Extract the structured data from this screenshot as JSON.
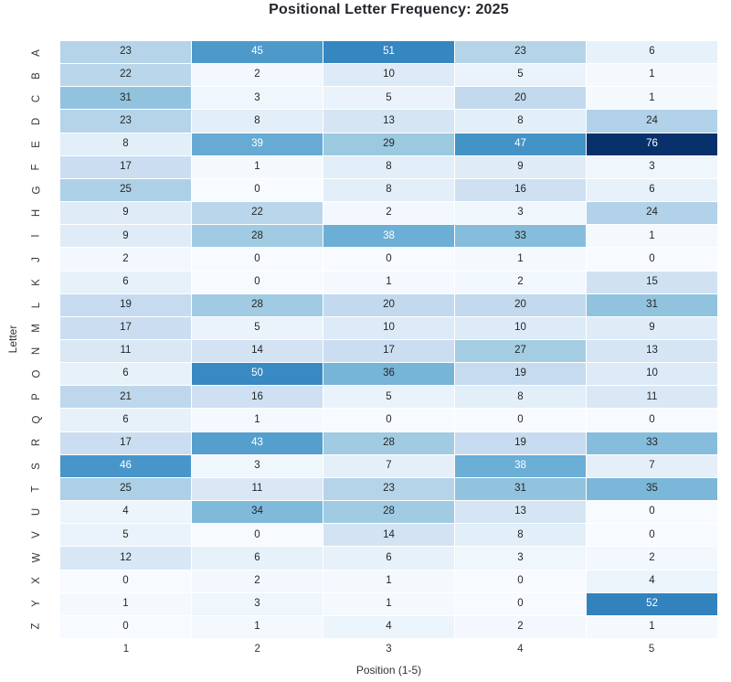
{
  "title": "Positional Letter Frequency: 2025",
  "chart_data": {
    "type": "heatmap",
    "title": "Positional Letter Frequency: 2025",
    "xlabel": "Position (1-5)",
    "ylabel": "Letter",
    "x_tick_labels": [
      "1",
      "2",
      "3",
      "4",
      "5"
    ],
    "y_tick_labels": [
      "A",
      "B",
      "C",
      "D",
      "E",
      "F",
      "G",
      "H",
      "I",
      "J",
      "K",
      "L",
      "M",
      "N",
      "O",
      "P",
      "Q",
      "R",
      "S",
      "T",
      "U",
      "V",
      "W",
      "X",
      "Y",
      "Z"
    ],
    "values": [
      [
        23,
        45,
        51,
        23,
        6
      ],
      [
        22,
        2,
        10,
        5,
        1
      ],
      [
        31,
        3,
        5,
        20,
        1
      ],
      [
        23,
        8,
        13,
        8,
        24
      ],
      [
        8,
        39,
        29,
        47,
        76
      ],
      [
        17,
        1,
        8,
        9,
        3
      ],
      [
        25,
        0,
        8,
        16,
        6
      ],
      [
        9,
        22,
        2,
        3,
        24
      ],
      [
        9,
        28,
        38,
        33,
        1
      ],
      [
        2,
        0,
        0,
        1,
        0
      ],
      [
        6,
        0,
        1,
        2,
        15
      ],
      [
        19,
        28,
        20,
        20,
        31
      ],
      [
        17,
        5,
        10,
        10,
        9
      ],
      [
        11,
        14,
        17,
        27,
        13
      ],
      [
        6,
        50,
        36,
        19,
        10
      ],
      [
        21,
        16,
        5,
        8,
        11
      ],
      [
        6,
        1,
        0,
        0,
        0
      ],
      [
        17,
        43,
        28,
        19,
        33
      ],
      [
        46,
        3,
        7,
        38,
        7
      ],
      [
        25,
        11,
        23,
        31,
        35
      ],
      [
        4,
        34,
        28,
        13,
        0
      ],
      [
        5,
        0,
        14,
        8,
        0
      ],
      [
        12,
        6,
        6,
        3,
        2
      ],
      [
        0,
        2,
        1,
        0,
        4
      ],
      [
        1,
        3,
        1,
        0,
        52
      ],
      [
        0,
        1,
        4,
        2,
        1
      ]
    ],
    "vmin": 0,
    "vmax": 76,
    "annotated": true,
    "grid_line_color": "#ffffff",
    "colormap": "Blues",
    "colormap_stops": [
      "#f7fbff",
      "#deebf7",
      "#c6dbef",
      "#9ecae1",
      "#6baed6",
      "#4292c6",
      "#2171b5",
      "#08519c",
      "#08306b"
    ],
    "annotation_dark_text_color": "#262626",
    "annotation_light_text_color": "#ffffff",
    "title_color": "#25252e",
    "tick_label_color": "#333333",
    "background_color": "#ffffff",
    "legend": "none"
  }
}
